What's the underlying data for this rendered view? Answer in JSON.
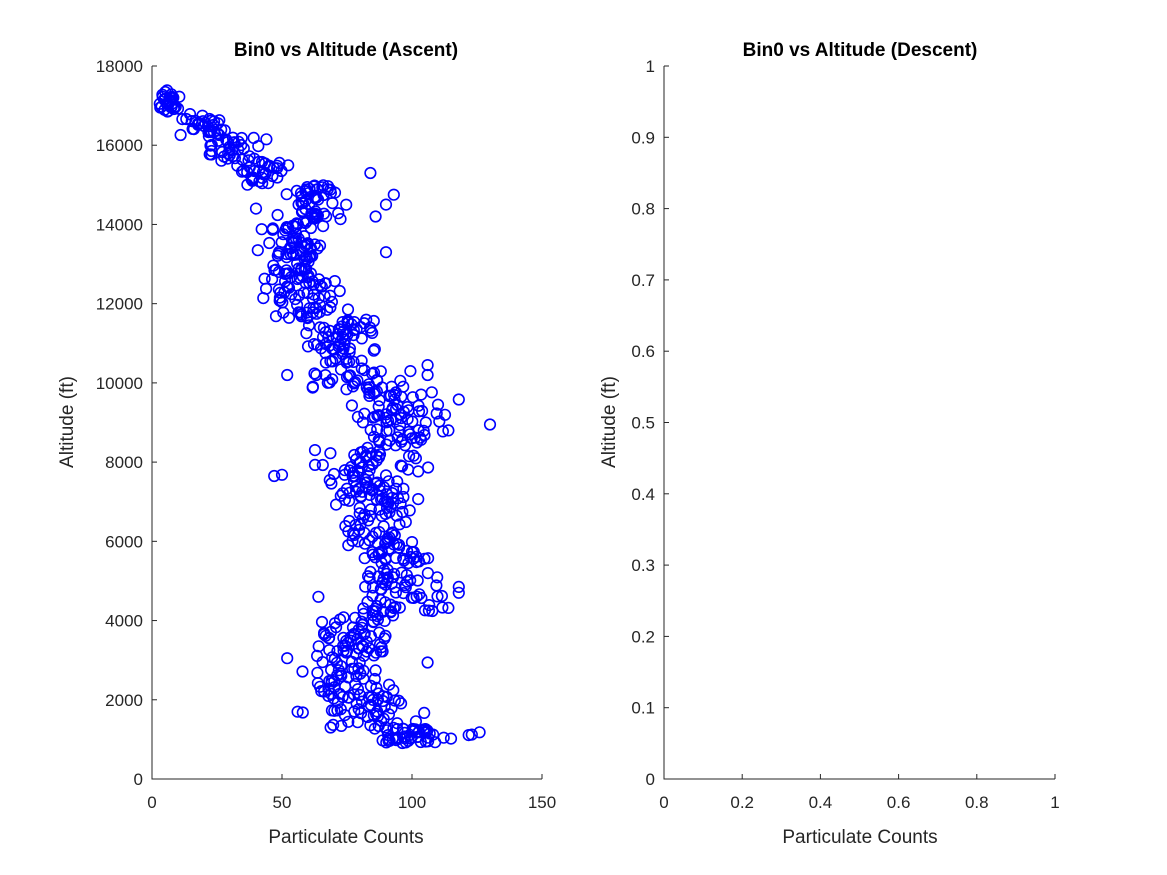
{
  "chart_data": [
    {
      "type": "scatter",
      "title": "Bin0 vs Altitude (Ascent)",
      "xlabel": "Particulate Counts",
      "ylabel": "Altitude (ft)",
      "xlim": [
        0,
        150
      ],
      "ylim": [
        0,
        18000
      ],
      "xticks": [
        0,
        50,
        100,
        150
      ],
      "yticks": [
        0,
        2000,
        4000,
        6000,
        8000,
        10000,
        12000,
        14000,
        16000,
        18000
      ],
      "grid": false,
      "marker": "open-circle",
      "marker_color": "#0000ff",
      "profile_note": "dense cluster of points; values approximated from the visible point cloud",
      "bands": [
        {
          "alt": [
            16800,
            17400
          ],
          "x": [
            0,
            12
          ]
        },
        {
          "alt": [
            16200,
            16800
          ],
          "x": [
            8,
            32
          ]
        },
        {
          "alt": [
            15600,
            16200
          ],
          "x": [
            18,
            45
          ]
        },
        {
          "alt": [
            15000,
            15600
          ],
          "x": [
            28,
            58
          ]
        },
        {
          "alt": [
            14000,
            15000
          ],
          "x": [
            45,
            78
          ]
        },
        {
          "alt": [
            12600,
            14000
          ],
          "x": [
            38,
            72
          ]
        },
        {
          "alt": [
            11600,
            12600
          ],
          "x": [
            40,
            80
          ]
        },
        {
          "alt": [
            10400,
            11600
          ],
          "x": [
            55,
            92
          ]
        },
        {
          "alt": [
            9800,
            10400
          ],
          "x": [
            55,
            105
          ]
        },
        {
          "alt": [
            8400,
            9800
          ],
          "x": [
            70,
            118
          ]
        },
        {
          "alt": [
            7400,
            8400
          ],
          "x": [
            55,
            110
          ]
        },
        {
          "alt": [
            5800,
            7400
          ],
          "x": [
            62,
            108
          ]
        },
        {
          "alt": [
            4200,
            5800
          ],
          "x": [
            68,
            118
          ]
        },
        {
          "alt": [
            3000,
            4200
          ],
          "x": [
            55,
            100
          ]
        },
        {
          "alt": [
            2000,
            3000
          ],
          "x": [
            50,
            100
          ]
        },
        {
          "alt": [
            1300,
            2000
          ],
          "x": [
            58,
            108
          ]
        },
        {
          "alt": [
            900,
            1300
          ],
          "x": [
            72,
            126
          ]
        }
      ],
      "outliers": [
        {
          "x": 84,
          "y": 15300
        },
        {
          "x": 93,
          "y": 14750
        },
        {
          "x": 90,
          "y": 14500
        },
        {
          "x": 86,
          "y": 14200
        },
        {
          "x": 90,
          "y": 13300
        },
        {
          "x": 130,
          "y": 8950
        },
        {
          "x": 118,
          "y": 9580
        },
        {
          "x": 106,
          "y": 10450
        },
        {
          "x": 106,
          "y": 10200
        },
        {
          "x": 47,
          "y": 7650
        },
        {
          "x": 50,
          "y": 7680
        },
        {
          "x": 106,
          "y": 2940
        },
        {
          "x": 118,
          "y": 4850
        },
        {
          "x": 118,
          "y": 4700
        },
        {
          "x": 114,
          "y": 4320
        },
        {
          "x": 126,
          "y": 1180
        },
        {
          "x": 123,
          "y": 1120
        },
        {
          "x": 115,
          "y": 1020
        },
        {
          "x": 64,
          "y": 4600
        },
        {
          "x": 52,
          "y": 10200
        },
        {
          "x": 40,
          "y": 14400
        },
        {
          "x": 44,
          "y": 16150
        },
        {
          "x": 114,
          "y": 8800
        },
        {
          "x": 110,
          "y": 9450
        },
        {
          "x": 56,
          "y": 1700
        },
        {
          "x": 58,
          "y": 1680
        },
        {
          "x": 52,
          "y": 3050
        }
      ],
      "point_count": 900,
      "points": []
    },
    {
      "type": "scatter",
      "title": "Bin0 vs Altitude (Descent)",
      "xlabel": "Particulate Counts",
      "ylabel": "Altitude (ft)",
      "xlim": [
        0,
        1
      ],
      "ylim": [
        0,
        1
      ],
      "xticks": [
        0,
        0.2,
        0.4,
        0.6,
        0.8,
        1
      ],
      "xtick_labels": [
        "0",
        "0.2",
        "0.4",
        "0.6",
        "0.8",
        "1"
      ],
      "yticks": [
        0,
        0.1,
        0.2,
        0.3,
        0.4,
        0.5,
        0.6,
        0.7,
        0.8,
        0.9,
        1
      ],
      "ytick_labels": [
        "0",
        "0.1",
        "0.2",
        "0.3",
        "0.4",
        "0.5",
        "0.6",
        "0.7",
        "0.8",
        "0.9",
        "1"
      ],
      "grid": false,
      "points": []
    }
  ]
}
